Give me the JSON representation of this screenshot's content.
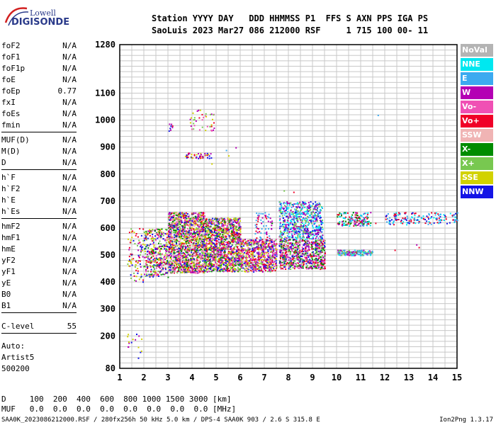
{
  "logo": {
    "line1": "Lowell",
    "line2": "DIGISONDE"
  },
  "header": {
    "line1": "Station YYYY DAY   DDD HHMMSS P1  FFS S AXN PPS IGA PS",
    "line2": "SaoLuis 2023 Mar27 086 212000 RSF     1 715 100 00- 11"
  },
  "params": [
    {
      "name": "foF2",
      "value": "N/A"
    },
    {
      "name": "foF1",
      "value": "N/A"
    },
    {
      "name": "foF1p",
      "value": "N/A"
    },
    {
      "name": "foE",
      "value": "N/A"
    },
    {
      "name": "foEp",
      "value": "0.77"
    },
    {
      "name": "fxI",
      "value": "N/A"
    },
    {
      "name": "foEs",
      "value": "N/A"
    },
    {
      "name": "fmin",
      "value": "N/A"
    },
    {
      "name": "MUF(D)",
      "value": "N/A"
    },
    {
      "name": "M(D)",
      "value": "N/A"
    },
    {
      "name": "D",
      "value": "N/A"
    },
    {
      "name": "h`F",
      "value": "N/A"
    },
    {
      "name": "h`F2",
      "value": "N/A"
    },
    {
      "name": "h`E",
      "value": "N/A"
    },
    {
      "name": "h`Es",
      "value": "N/A"
    },
    {
      "name": "hmF2",
      "value": "N/A"
    },
    {
      "name": "hmF1",
      "value": "N/A"
    },
    {
      "name": "hmE",
      "value": "N/A"
    },
    {
      "name": "yF2",
      "value": "N/A"
    },
    {
      "name": "yF1",
      "value": "N/A"
    },
    {
      "name": "yE",
      "value": "N/A"
    },
    {
      "name": "B0",
      "value": "N/A"
    },
    {
      "name": "B1",
      "value": "N/A"
    },
    {
      "name": "C-level",
      "value": "55"
    }
  ],
  "auto": {
    "line1": "Auto:",
    "line2": "Artist5",
    "line3": "500200"
  },
  "legend": [
    {
      "label": "NoVal",
      "color": "#b4b4b4"
    },
    {
      "label": "NNE",
      "color": "#00e8f0"
    },
    {
      "label": "E",
      "color": "#3caaf0"
    },
    {
      "label": "W",
      "color": "#b400b4"
    },
    {
      "label": "Vo-",
      "color": "#f050b4"
    },
    {
      "label": "Vo+",
      "color": "#f00028"
    },
    {
      "label": "SSW",
      "color": "#f0b4b4"
    },
    {
      "label": "X-",
      "color": "#008c00"
    },
    {
      "label": "X+",
      "color": "#78c850"
    },
    {
      "label": "SSE",
      "color": "#d2d200"
    },
    {
      "label": "NNW",
      "color": "#1414e6"
    }
  ],
  "bottom": {
    "line1": "D     100  200  400  600  800 1000 1500 3000 [km]",
    "line2": "MUF   0.0  0.0  0.0  0.0  0.0  0.0  0.0  0.0 [MHz]"
  },
  "footer": {
    "left": "SAA0K_2023086212000.RSF / 280fx256h 50 kHz 5.0 km / DPS-4 SAA0K 903 / 2.6 S 315.8 E",
    "right": "Ion2Png 1.3.17"
  },
  "chart_data": {
    "type": "scatter",
    "xlim": [
      1,
      15
    ],
    "ylim": [
      80,
      1280
    ],
    "x_ticks": [
      1,
      2,
      3,
      4,
      5,
      6,
      7,
      8,
      9,
      10,
      11,
      12,
      13,
      14,
      15
    ],
    "y_ticks": [
      80,
      200,
      300,
      400,
      500,
      600,
      700,
      800,
      900,
      1000,
      1100,
      1280
    ],
    "grid": true,
    "regions": [
      {
        "x": [
          1.3,
          2.0
        ],
        "y": [
          400,
          600
        ],
        "count": 90,
        "colors": [
          "#1414e6",
          "#b400b4",
          "#d2d200",
          "#f00028",
          "#78c850"
        ]
      },
      {
        "x": [
          2.0,
          3.0
        ],
        "y": [
          420,
          600
        ],
        "count": 350,
        "colors": [
          "#1414e6",
          "#b400b4",
          "#d2d200",
          "#f00028",
          "#78c850",
          "#008c00",
          "#f050b4"
        ]
      },
      {
        "x": [
          3.0,
          4.5
        ],
        "y": [
          435,
          660
        ],
        "count": 1500,
        "colors": [
          "#1414e6",
          "#b400b4",
          "#d2d200",
          "#f00028",
          "#78c850",
          "#008c00",
          "#f050b4",
          "#f0b4b4"
        ]
      },
      {
        "x": [
          4.5,
          6.0
        ],
        "y": [
          440,
          640
        ],
        "count": 1200,
        "colors": [
          "#1414e6",
          "#b400b4",
          "#d2d200",
          "#f00028",
          "#008c00",
          "#f050b4",
          "#78c850"
        ]
      },
      {
        "x": [
          6.0,
          7.5
        ],
        "y": [
          440,
          560
        ],
        "count": 650,
        "colors": [
          "#b400b4",
          "#f00028",
          "#f050b4",
          "#1414e6",
          "#78c850",
          "#d2d200"
        ]
      },
      {
        "x": [
          6.6,
          7.3
        ],
        "y": [
          560,
          660
        ],
        "count": 60,
        "colors": [
          "#3caaf0",
          "#b400b4",
          "#f00028"
        ]
      },
      {
        "x": [
          7.6,
          9.4
        ],
        "y": [
          560,
          700
        ],
        "count": 650,
        "colors": [
          "#3caaf0",
          "#00e8f0",
          "#b400b4",
          "#1414e6",
          "#78c850"
        ]
      },
      {
        "x": [
          7.6,
          9.5
        ],
        "y": [
          450,
          560
        ],
        "count": 700,
        "colors": [
          "#f00028",
          "#f050b4",
          "#b400b4",
          "#1414e6",
          "#78c850",
          "#008c00"
        ]
      },
      {
        "x": [
          10.0,
          11.5
        ],
        "y": [
          500,
          520
        ],
        "count": 160,
        "colors": [
          "#78c850",
          "#3caaf0",
          "#00e8f0",
          "#b400b4"
        ]
      },
      {
        "x": [
          10.0,
          11.4
        ],
        "y": [
          610,
          660
        ],
        "count": 150,
        "colors": [
          "#3caaf0",
          "#00e8f0",
          "#b400b4",
          "#f00028",
          "#008c00"
        ]
      },
      {
        "x": [
          12.0,
          15.0
        ],
        "y": [
          615,
          660
        ],
        "count": 160,
        "colors": [
          "#3caaf0",
          "#00e8f0",
          "#1414e6",
          "#f00028"
        ]
      },
      {
        "x": [
          3.0,
          3.2
        ],
        "y": [
          960,
          990
        ],
        "count": 8,
        "colors": [
          "#b400b4",
          "#1414e6",
          "#f00028"
        ]
      },
      {
        "x": [
          3.8,
          4.9
        ],
        "y": [
          960,
          1040
        ],
        "count": 40,
        "colors": [
          "#d2d200",
          "#78c850",
          "#f050b4",
          "#b400b4",
          "#f00028"
        ]
      },
      {
        "x": [
          3.7,
          4.8
        ],
        "y": [
          860,
          880
        ],
        "count": 45,
        "colors": [
          "#b400b4",
          "#1414e6",
          "#d2d200",
          "#f00028"
        ]
      },
      {
        "x": [
          1.3,
          1.9
        ],
        "y": [
          140,
          210
        ],
        "count": 12,
        "colors": [
          "#d2d200",
          "#1414e6",
          "#b400b4"
        ]
      }
    ],
    "points": [
      {
        "x": 11.7,
        "y": 1020,
        "c": "#3caaf0"
      },
      {
        "x": 7.3,
        "y": 620,
        "c": "#008c00"
      },
      {
        "x": 12.4,
        "y": 520,
        "c": "#f00028"
      },
      {
        "x": 13.3,
        "y": 540,
        "c": "#b400b4"
      },
      {
        "x": 13.4,
        "y": 530,
        "c": "#f00028"
      },
      {
        "x": 10.8,
        "y": 510,
        "c": "#f00028"
      },
      {
        "x": 11.6,
        "y": 620,
        "c": "#f00028"
      },
      {
        "x": 1.8,
        "y": 600,
        "c": "#f00028"
      },
      {
        "x": 5.4,
        "y": 890,
        "c": "#3caaf0"
      },
      {
        "x": 5.8,
        "y": 900,
        "c": "#b400b4"
      },
      {
        "x": 4.8,
        "y": 840,
        "c": "#d2d200"
      },
      {
        "x": 5.5,
        "y": 870,
        "c": "#d2d200"
      },
      {
        "x": 7.8,
        "y": 740,
        "c": "#78c850"
      },
      {
        "x": 8.2,
        "y": 735,
        "c": "#f00028"
      },
      {
        "x": 2.6,
        "y": 470,
        "c": "#f00028"
      },
      {
        "x": 1.75,
        "y": 160,
        "c": "#d2d200"
      },
      {
        "x": 1.75,
        "y": 120,
        "c": "#1414e6"
      },
      {
        "x": 1.3,
        "y": 200,
        "c": "#d2d200"
      },
      {
        "x": 1.35,
        "y": 180,
        "c": "#d2d200"
      }
    ]
  }
}
